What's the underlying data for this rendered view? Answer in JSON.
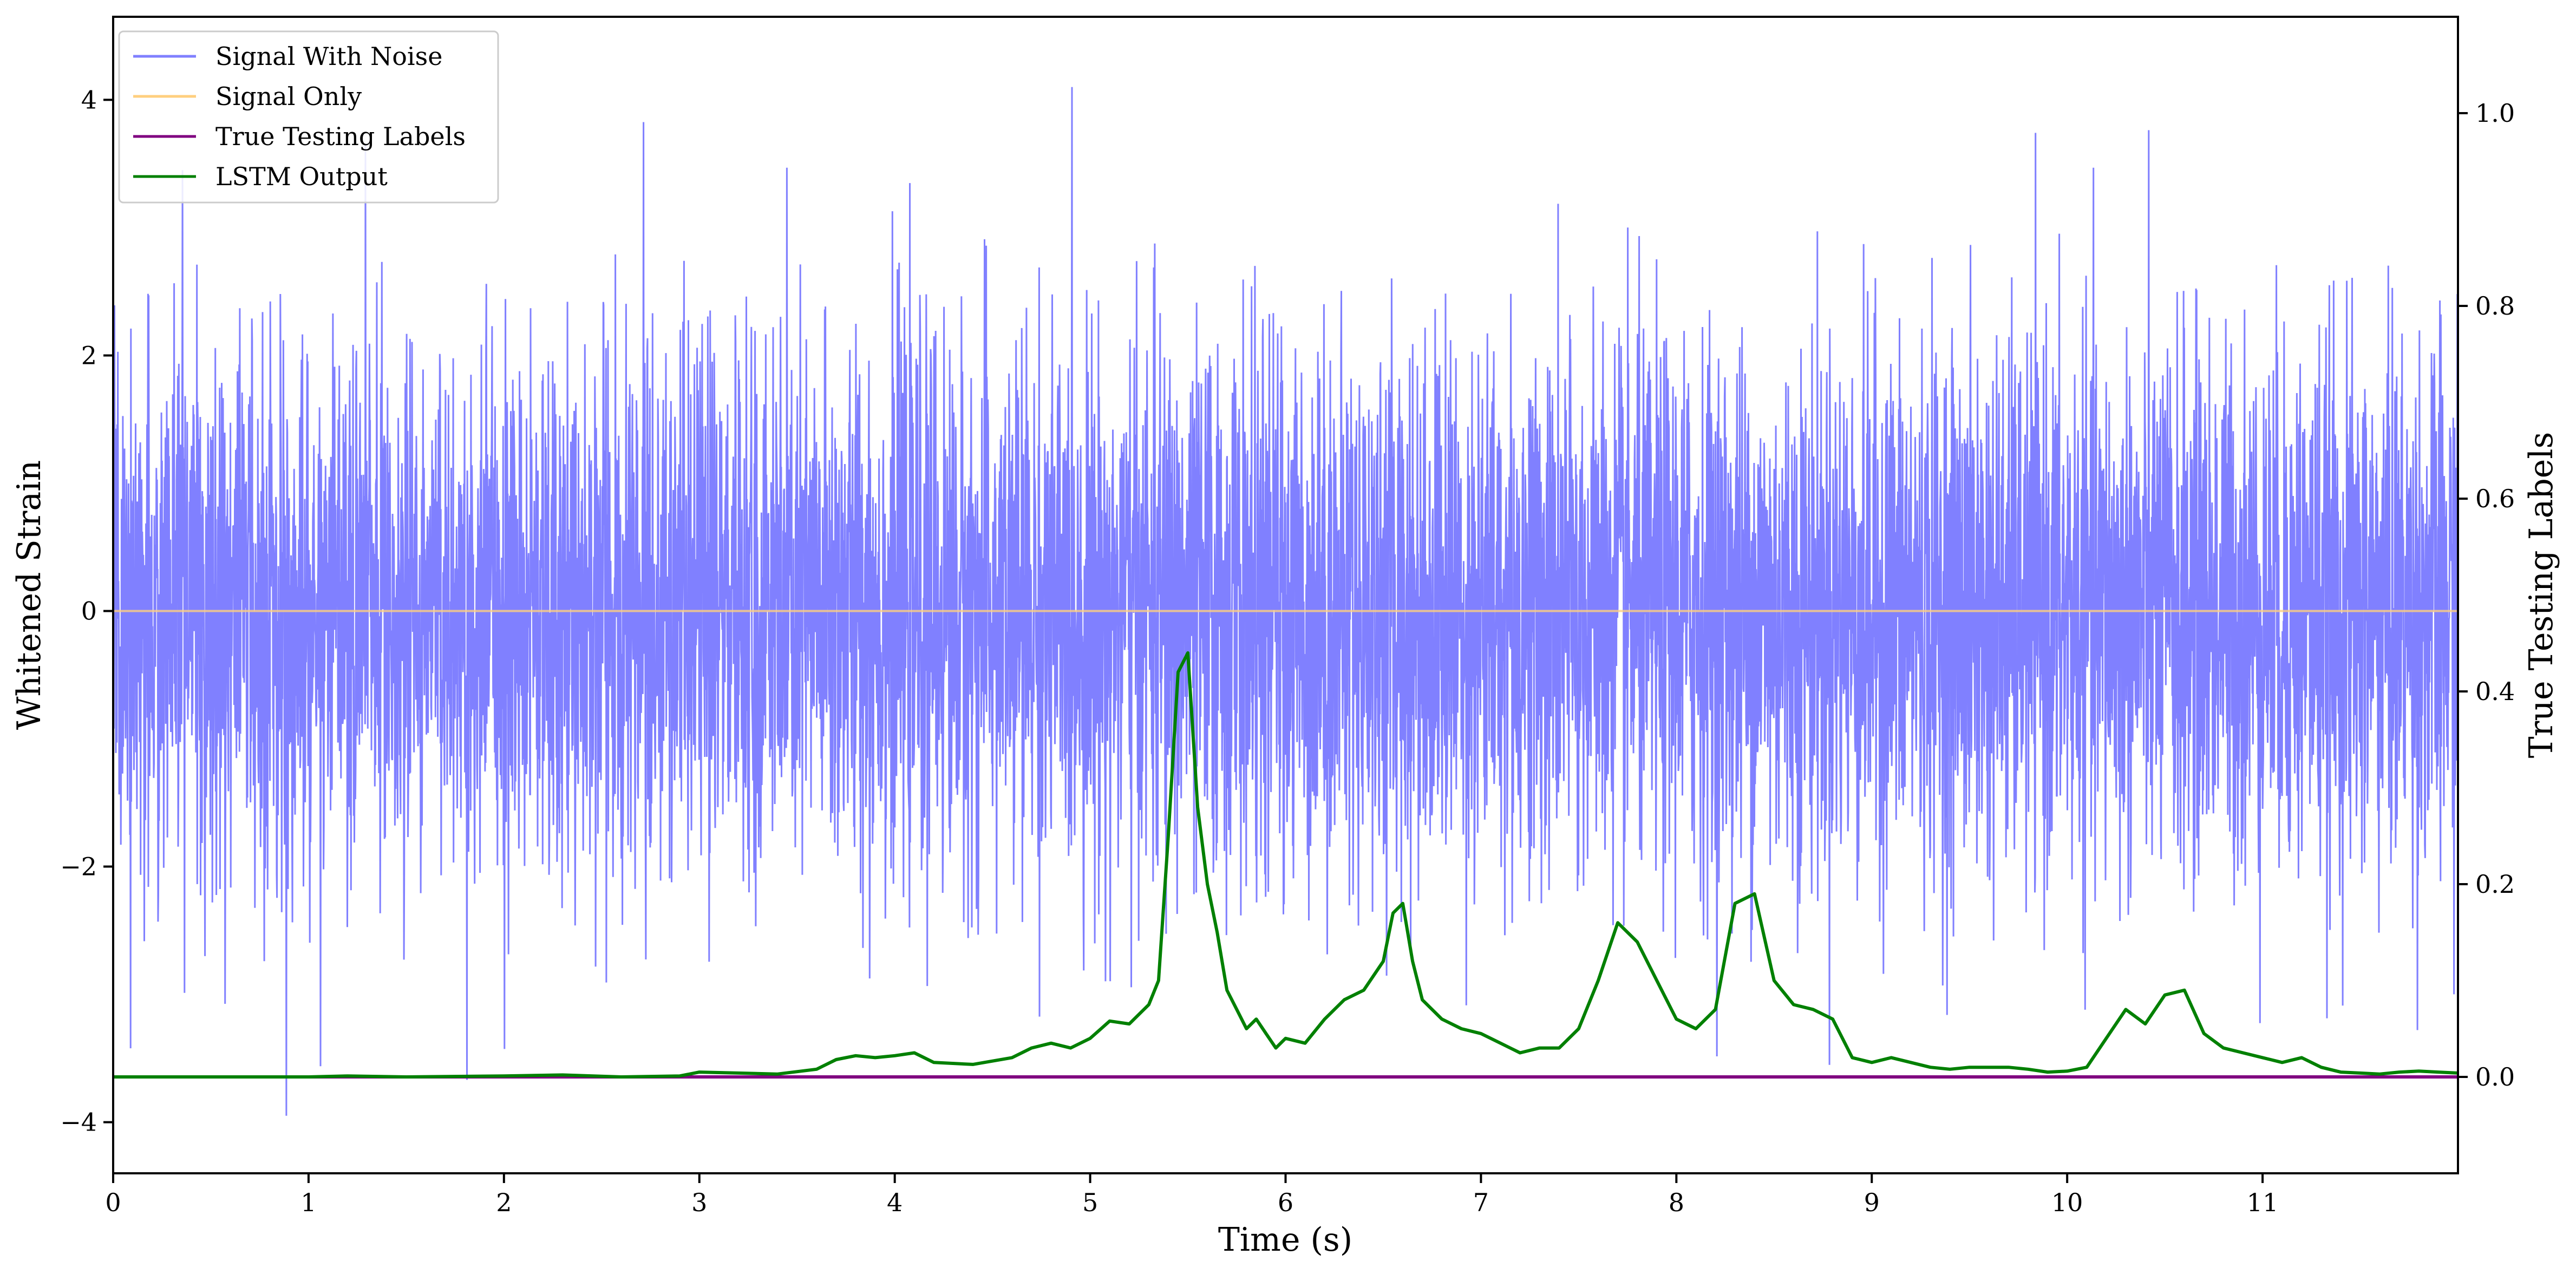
{
  "chart_data": {
    "type": "line",
    "xlabel": "Time (s)",
    "ylabel_left": "Whitened Strain",
    "ylabel_right": "True Testing Labels",
    "xlim": [
      0,
      12
    ],
    "ylim_left": [
      -4.4,
      4.65
    ],
    "ylim_right": [
      -0.1,
      1.1
    ],
    "x_ticks": [
      0,
      1,
      2,
      3,
      4,
      5,
      6,
      7,
      8,
      9,
      10,
      11
    ],
    "y_left_ticks": [
      -4,
      -2,
      0,
      2,
      4
    ],
    "y_left_tick_labels": [
      "−4",
      "−2",
      "0",
      "2",
      "4"
    ],
    "y_right_ticks": [
      0.0,
      0.2,
      0.4,
      0.6,
      0.8,
      1.0
    ],
    "y_right_tick_labels": [
      "0.0",
      "0.2",
      "0.4",
      "0.6",
      "0.8",
      "1.0"
    ],
    "grid": false,
    "legend_position": "top-left",
    "colors": {
      "noise": "#8080ff",
      "signal": "#ffcf7f",
      "labels": "#800080",
      "lstm": "#008000"
    },
    "series": [
      {
        "name": "Signal With Noise",
        "axis": "left",
        "description_type": "noise",
        "std": 1.05,
        "color": "#8080ff"
      },
      {
        "name": "Signal Only",
        "axis": "left",
        "x": [
          0,
          12
        ],
        "y": [
          0,
          0
        ],
        "color": "#ffcf7f"
      },
      {
        "name": "True Testing Labels",
        "axis": "right",
        "x": [
          0,
          12
        ],
        "y": [
          0,
          0
        ],
        "color": "#800080"
      },
      {
        "name": "LSTM Output",
        "axis": "right",
        "color": "#008000",
        "x": [
          0.0,
          0.5,
          1.0,
          1.2,
          1.5,
          2.0,
          2.3,
          2.6,
          2.9,
          3.0,
          3.2,
          3.4,
          3.6,
          3.7,
          3.8,
          3.9,
          4.0,
          4.1,
          4.2,
          4.4,
          4.6,
          4.7,
          4.8,
          4.9,
          5.0,
          5.1,
          5.2,
          5.3,
          5.35,
          5.4,
          5.45,
          5.5,
          5.55,
          5.6,
          5.65,
          5.7,
          5.75,
          5.8,
          5.85,
          5.9,
          5.95,
          6.0,
          6.1,
          6.2,
          6.3,
          6.4,
          6.5,
          6.55,
          6.6,
          6.65,
          6.7,
          6.8,
          6.9,
          7.0,
          7.1,
          7.2,
          7.3,
          7.4,
          7.5,
          7.6,
          7.7,
          7.8,
          7.9,
          8.0,
          8.1,
          8.2,
          8.3,
          8.4,
          8.5,
          8.6,
          8.7,
          8.8,
          8.9,
          9.0,
          9.1,
          9.2,
          9.3,
          9.4,
          9.5,
          9.6,
          9.7,
          9.8,
          9.9,
          10.0,
          10.1,
          10.2,
          10.3,
          10.4,
          10.5,
          10.6,
          10.7,
          10.8,
          10.9,
          11.0,
          11.1,
          11.2,
          11.3,
          11.4,
          11.5,
          11.6,
          11.7,
          11.8,
          11.9,
          12.0
        ],
        "y": [
          0.0,
          0.0,
          0.0,
          0.001,
          0.0,
          0.001,
          0.002,
          0.0,
          0.001,
          0.005,
          0.004,
          0.003,
          0.008,
          0.018,
          0.022,
          0.02,
          0.022,
          0.025,
          0.015,
          0.013,
          0.02,
          0.03,
          0.035,
          0.03,
          0.04,
          0.058,
          0.055,
          0.075,
          0.1,
          0.25,
          0.42,
          0.44,
          0.28,
          0.2,
          0.15,
          0.09,
          0.07,
          0.05,
          0.06,
          0.045,
          0.03,
          0.04,
          0.035,
          0.06,
          0.08,
          0.09,
          0.12,
          0.17,
          0.18,
          0.12,
          0.08,
          0.06,
          0.05,
          0.045,
          0.035,
          0.025,
          0.03,
          0.03,
          0.05,
          0.1,
          0.16,
          0.14,
          0.1,
          0.06,
          0.05,
          0.07,
          0.18,
          0.19,
          0.1,
          0.075,
          0.07,
          0.06,
          0.02,
          0.015,
          0.02,
          0.015,
          0.01,
          0.008,
          0.01,
          0.01,
          0.01,
          0.008,
          0.005,
          0.006,
          0.01,
          0.04,
          0.07,
          0.055,
          0.085,
          0.09,
          0.045,
          0.03,
          0.025,
          0.02,
          0.015,
          0.02,
          0.01,
          0.005,
          0.004,
          0.003,
          0.005,
          0.006,
          0.005,
          0.004
        ]
      }
    ]
  }
}
